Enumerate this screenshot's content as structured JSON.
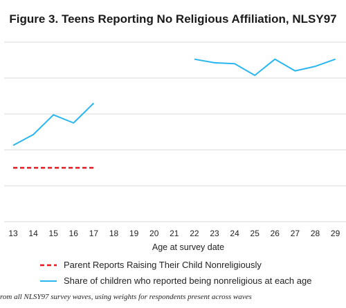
{
  "chart_data": {
    "type": "line",
    "title": "Figure 3. Teens Reporting No Religious Affiliation, NLSY97",
    "xlabel": "Age at survey date",
    "ylabel": "",
    "categories": [
      "13",
      "14",
      "15",
      "16",
      "17",
      "18",
      "19",
      "20",
      "21",
      "22",
      "23",
      "24",
      "25",
      "26",
      "27",
      "28",
      "29"
    ],
    "ylim": [
      0,
      100
    ],
    "grid": true,
    "legend_position": "bottom",
    "series": [
      {
        "name": "Parent Reports Raising Their Child Nonreligiously",
        "style": "dashed",
        "color": "#e8131b",
        "values": [
          30,
          30,
          30,
          30,
          30,
          null,
          null,
          null,
          null,
          null,
          null,
          null,
          null,
          null,
          null,
          null,
          null
        ]
      },
      {
        "name": "Share of children who reported being nonreligious at each age",
        "style": "solid",
        "color": "#29b6f0",
        "values": [
          42.5,
          48.5,
          59.5,
          55,
          66,
          null,
          null,
          null,
          null,
          90.5,
          88.5,
          88,
          81.5,
          90.5,
          84,
          86.5,
          90.5
        ]
      }
    ],
    "note": "rom all NLSY97 survey waves, using weights for respondents present across waves"
  }
}
